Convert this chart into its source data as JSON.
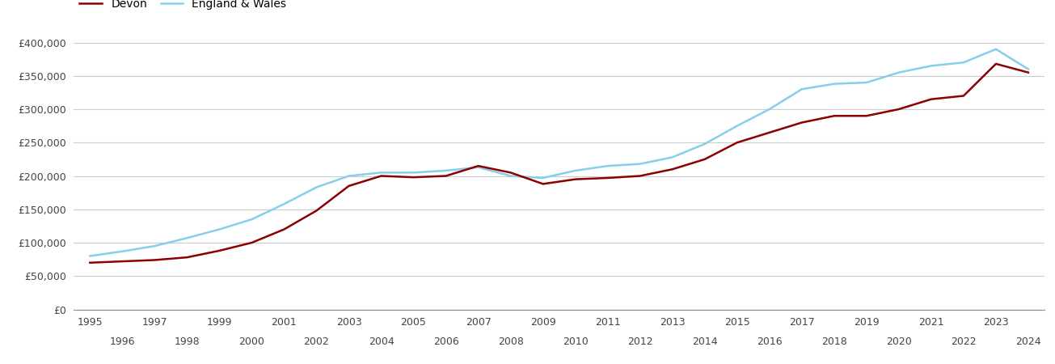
{
  "devon": {
    "years": [
      1995,
      1996,
      1997,
      1998,
      1999,
      2000,
      2001,
      2002,
      2003,
      2004,
      2005,
      2006,
      2007,
      2008,
      2009,
      2010,
      2011,
      2012,
      2013,
      2014,
      2015,
      2016,
      2017,
      2018,
      2019,
      2020,
      2021,
      2022,
      2023,
      2024
    ],
    "values": [
      70000,
      72000,
      74000,
      78000,
      88000,
      100000,
      120000,
      148000,
      185000,
      200000,
      198000,
      200000,
      215000,
      205000,
      188000,
      195000,
      197000,
      200000,
      210000,
      225000,
      250000,
      265000,
      280000,
      290000,
      290000,
      300000,
      315000,
      320000,
      368000,
      355000
    ]
  },
  "england_wales": {
    "years": [
      1995,
      1996,
      1997,
      1998,
      1999,
      2000,
      2001,
      2002,
      2003,
      2004,
      2005,
      2006,
      2007,
      2008,
      2009,
      2010,
      2011,
      2012,
      2013,
      2014,
      2015,
      2016,
      2017,
      2018,
      2019,
      2020,
      2021,
      2022,
      2023,
      2024
    ],
    "values": [
      80000,
      87000,
      95000,
      107000,
      120000,
      135000,
      158000,
      183000,
      200000,
      205000,
      205000,
      208000,
      213000,
      200000,
      197000,
      208000,
      215000,
      218000,
      228000,
      248000,
      275000,
      300000,
      330000,
      338000,
      340000,
      355000,
      365000,
      370000,
      390000,
      360000
    ]
  },
  "devon_color": "#8B0000",
  "england_wales_color": "#87CEEB",
  "line_width": 1.8,
  "ylim": [
    0,
    420000
  ],
  "ytick_values": [
    0,
    50000,
    100000,
    150000,
    200000,
    250000,
    300000,
    350000,
    400000
  ],
  "xlim": [
    1994.5,
    2024.5
  ],
  "legend_labels": [
    "Devon",
    "England & Wales"
  ],
  "background_color": "#ffffff",
  "grid_color": "#cccccc",
  "tick_fontsize": 9,
  "legend_fontsize": 10
}
